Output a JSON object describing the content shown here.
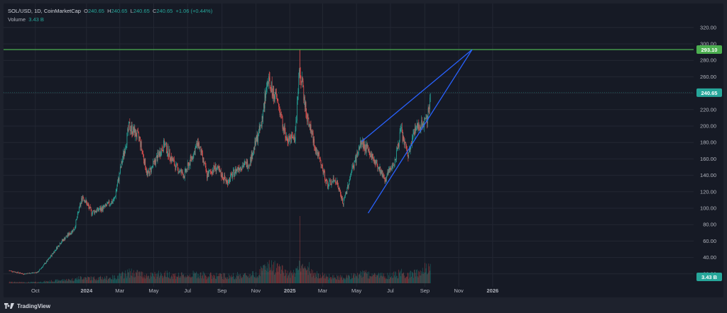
{
  "legend": {
    "symbol_line": "SOL/USD, 1D, CoinMarketCap",
    "open_label": "O",
    "open": "240.65",
    "high_label": "H",
    "high": "240.65",
    "low_label": "L",
    "low": "240.65",
    "close_label": "C",
    "close": "240.65",
    "change": "+1.06 (+0.44%)",
    "volume_label": "Volume",
    "volume": "3.43 B"
  },
  "footer": {
    "brand": "TradingView"
  },
  "colors": {
    "up": "#26a69a",
    "down": "#ef5350",
    "trendline": "#2962ff",
    "level": "#4caf50",
    "price_badge": "#26a69a",
    "grid": "#232733"
  },
  "chart_data": {
    "type": "candlestick",
    "symbol": "SOL/USD",
    "interval": "1D",
    "ylim": [
      0,
      320
    ],
    "yticks": [
      "320.00",
      "300.00",
      "280.00",
      "260.00",
      "240.00",
      "220.00",
      "200.00",
      "180.00",
      "160.00",
      "140.00",
      "120.00",
      "100.00",
      "80.00",
      "60.00",
      "40.00",
      "20.00"
    ],
    "xticks": [
      "Oct",
      "2024",
      "Mar",
      "May",
      "Jul",
      "Sep",
      "Nov",
      "2025",
      "Mar",
      "May",
      "Jul",
      "Sep",
      "Nov",
      "2026"
    ],
    "price_path": [
      [
        "2023-08-15",
        24
      ],
      [
        "2023-09-10",
        20
      ],
      [
        "2023-10-05",
        22
      ],
      [
        "2023-10-25",
        38
      ],
      [
        "2023-11-15",
        58
      ],
      [
        "2023-12-10",
        75
      ],
      [
        "2023-12-25",
        115
      ],
      [
        "2024-01-10",
        95
      ],
      [
        "2024-01-31",
        100
      ],
      [
        "2024-02-20",
        110
      ],
      [
        "2024-03-18",
        200
      ],
      [
        "2024-04-05",
        185
      ],
      [
        "2024-04-20",
        140
      ],
      [
        "2024-05-20",
        178
      ],
      [
        "2024-06-10",
        150
      ],
      [
        "2024-06-25",
        140
      ],
      [
        "2024-07-20",
        180
      ],
      [
        "2024-08-05",
        140
      ],
      [
        "2024-08-20",
        150
      ],
      [
        "2024-09-10",
        132
      ],
      [
        "2024-10-01",
        150
      ],
      [
        "2024-10-20",
        155
      ],
      [
        "2024-11-10",
        200
      ],
      [
        "2024-11-22",
        255
      ],
      [
        "2024-12-10",
        230
      ],
      [
        "2024-12-25",
        185
      ],
      [
        "2025-01-10",
        185
      ],
      [
        "2025-01-19",
        270
      ],
      [
        "2025-02-01",
        210
      ],
      [
        "2025-02-20",
        165
      ],
      [
        "2025-03-10",
        128
      ],
      [
        "2025-03-25",
        135
      ],
      [
        "2025-04-07",
        105
      ],
      [
        "2025-04-22",
        145
      ],
      [
        "2025-05-10",
        180
      ],
      [
        "2025-05-22",
        170
      ],
      [
        "2025-06-10",
        150
      ],
      [
        "2025-06-22",
        135
      ],
      [
        "2025-07-10",
        160
      ],
      [
        "2025-07-20",
        195
      ],
      [
        "2025-08-02",
        162
      ],
      [
        "2025-08-15",
        200
      ],
      [
        "2025-08-25",
        200
      ],
      [
        "2025-09-05",
        210
      ],
      [
        "2025-09-12",
        240
      ]
    ],
    "volume_max": "3.43 B",
    "last_price": 240.65,
    "last_price_label": "240.65",
    "level_price": 293.1,
    "level_label": "293.10",
    "volume_badge": "3.43 B",
    "trendlines": [
      {
        "from": [
          "2025-05-10",
          181
        ],
        "to": [
          "2025-11-25",
          293
        ]
      },
      {
        "from": [
          "2025-05-22",
          94
        ],
        "to": [
          "2025-11-25",
          293
        ]
      }
    ]
  }
}
